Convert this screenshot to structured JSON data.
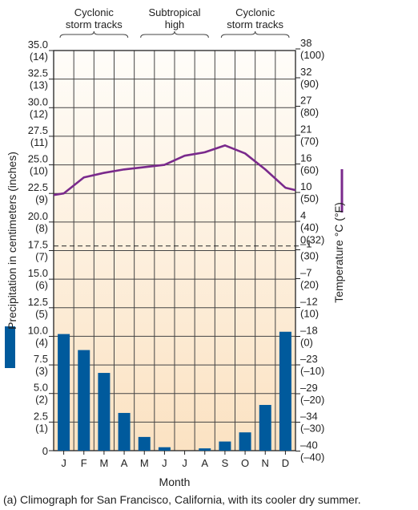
{
  "chart_data": {
    "type": "bar+line",
    "title": "",
    "caption": "(a) Climograph for San Francisco, California, with its cooler dry summer.",
    "xlabel": "Month",
    "ylabel_left": "Precipitation in centimeters (inches)",
    "ylabel_right": "Temperature °C (°F)",
    "categories": [
      "J",
      "F",
      "M",
      "A",
      "M",
      "J",
      "J",
      "A",
      "S",
      "O",
      "N",
      "D"
    ],
    "ylim_left": [
      0,
      35
    ],
    "ylim_right_c": [
      -40,
      38
    ],
    "left_ticks": [
      {
        "cm": "0",
        "in": ""
      },
      {
        "cm": "2.5",
        "in": "(1)"
      },
      {
        "cm": "5.0",
        "in": "(2)"
      },
      {
        "cm": "7.5",
        "in": "(3)"
      },
      {
        "cm": "10.0",
        "in": "(4)"
      },
      {
        "cm": "12.5",
        "in": "(5)"
      },
      {
        "cm": "15.0",
        "in": "(6)"
      },
      {
        "cm": "17.5",
        "in": "(7)"
      },
      {
        "cm": "20.0",
        "in": "(8)"
      },
      {
        "cm": "22.5",
        "in": "(9)"
      },
      {
        "cm": "25.0",
        "in": "(10)"
      },
      {
        "cm": "27.5",
        "in": "(11)"
      },
      {
        "cm": "30.0",
        "in": "(12)"
      },
      {
        "cm": "32.5",
        "in": "(13)"
      },
      {
        "cm": "35.0",
        "in": "(14)"
      }
    ],
    "right_ticks": [
      {
        "c": "–40",
        "f": "(–40)"
      },
      {
        "c": "–34",
        "f": "(–30)"
      },
      {
        "c": "–29",
        "f": "(–20)"
      },
      {
        "c": "–23",
        "f": "(–10)"
      },
      {
        "c": "–18",
        "f": "(0)"
      },
      {
        "c": "–12",
        "f": "(10)"
      },
      {
        "c": "–7",
        "f": "(20)"
      },
      {
        "c": "–1",
        "f": "(30)"
      },
      {
        "c": "0(32)",
        "f": ""
      },
      {
        "c": "4",
        "f": "(40)"
      },
      {
        "c": "10",
        "f": "(50)"
      },
      {
        "c": "16",
        "f": "(60)"
      },
      {
        "c": "21",
        "f": "(70)"
      },
      {
        "c": "27",
        "f": "(80)"
      },
      {
        "c": "32",
        "f": "(90)"
      },
      {
        "c": "38",
        "f": "(100)"
      }
    ],
    "freezing_line_cm": 17.9,
    "series": [
      {
        "type": "bar",
        "axis": "left",
        "color": "#005a9c",
        "values": [
          10.2,
          8.8,
          6.8,
          3.3,
          1.2,
          0.3,
          0.0,
          0.2,
          0.8,
          1.6,
          4.0,
          10.4
        ]
      },
      {
        "type": "line",
        "axis": "left-scale",
        "color": "#7a2a8c",
        "values": [
          22.5,
          23.9,
          24.3,
          24.6,
          24.8,
          25.0,
          25.8,
          26.1,
          26.7,
          26.0,
          24.6,
          23.0
        ]
      }
    ],
    "bands": [
      {
        "label1": "Cyclonic",
        "label2": "storm tracks",
        "from": 0,
        "to": 4
      },
      {
        "label1": "Subtropical",
        "label2": "high",
        "from": 4,
        "to": 8
      },
      {
        "label1": "Cyclonic",
        "label2": "storm tracks",
        "from": 8,
        "to": 12
      }
    ],
    "colors": {
      "bar": "#005a9c",
      "line": "#7a2a8c",
      "bg_top": "#fffdf9",
      "bg_bottom": "#fbe3c6",
      "grid": "#444444"
    }
  }
}
